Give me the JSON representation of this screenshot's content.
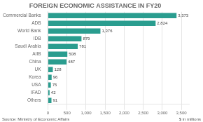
{
  "chart_data": {
    "type": "bar",
    "orientation": "horizontal",
    "title": "FOREIGN ECONOMIC ASSISTANCE IN FY20",
    "xlabel": "$ in millions",
    "annotations": [
      "Source: Ministry of Economic Affairs"
    ],
    "categories": [
      "Others",
      "IFAD",
      "USA",
      "Korea",
      "UK",
      "China",
      "AIIB",
      "Saudi Arabia",
      "IDB",
      "World Bank",
      "ADB",
      "Commercial Banks"
    ],
    "values": [
      91,
      42,
      75,
      96,
      128,
      487,
      508,
      781,
      879,
      1376,
      2824,
      3373
    ],
    "value_labels": [
      "91",
      "42",
      "75",
      "96",
      "128",
      "487",
      "508",
      "781",
      "879",
      "1,376",
      "2,824",
      "3,373"
    ],
    "data_labels": true,
    "color": "#2a9d8f",
    "xlim": [
      0,
      3700
    ],
    "xticks": [
      0,
      500,
      {
        "value": 1000,
        "label": "1,000"
      },
      {
        "value": 1500,
        "label": "1,500"
      },
      {
        "value": 2000,
        "label": "2,000"
      },
      {
        "value": 2500,
        "label": "2,500"
      },
      {
        "value": 3000,
        "label": "3,000"
      },
      {
        "value": 3500,
        "label": "3,500"
      }
    ],
    "grid": true
  }
}
